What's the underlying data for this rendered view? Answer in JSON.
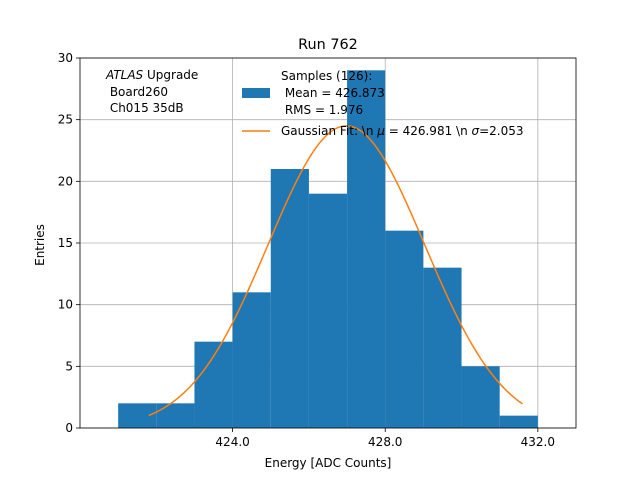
{
  "chart_data": {
    "type": "bar",
    "title": "Run 762",
    "xlabel": "Energy [ADC Counts]",
    "ylabel": "Entries",
    "xlim": [
      420.0,
      433.0
    ],
    "ylim": [
      0,
      30
    ],
    "xticks": [
      424.0,
      428.0,
      432.0
    ],
    "xtick_labels": [
      "424.0",
      "428.0",
      "432.0"
    ],
    "yticks": [
      0,
      5,
      10,
      15,
      20,
      25,
      30
    ],
    "grid": true,
    "histogram": {
      "name": "Samples (126)",
      "bin_edges": [
        421.0,
        422.0,
        423.0,
        424.0,
        425.0,
        426.0,
        427.0,
        428.0,
        429.0,
        430.0,
        431.0,
        432.0
      ],
      "counts": [
        2,
        2,
        7,
        11,
        21,
        19,
        29,
        16,
        13,
        5,
        1
      ],
      "color": "#1f77b4"
    },
    "fit": {
      "name": "Gaussian Fit",
      "mu": 426.981,
      "sigma": 2.053,
      "amplitude": 24.5,
      "x_range": [
        421.8,
        431.6
      ],
      "color": "#ff7f0e"
    },
    "annotation": {
      "line1_italic": "ATLAS",
      "line1_rest": " Upgrade",
      "line2": " Board260",
      "line3": " Ch015 35dB"
    },
    "legend": {
      "placement": "top-right",
      "hist_label_lines": [
        "Samples (126):",
        " Mean = 426.873",
        " RMS = 1.976"
      ],
      "fit_label_prefix": "Gaussian Fit: \\n ",
      "fit_label_mu_symbol": "μ",
      "fit_label_mid": " = 426.981 \\n ",
      "fit_label_sigma_symbol": "σ",
      "fit_label_suffix": "=2.053"
    }
  }
}
